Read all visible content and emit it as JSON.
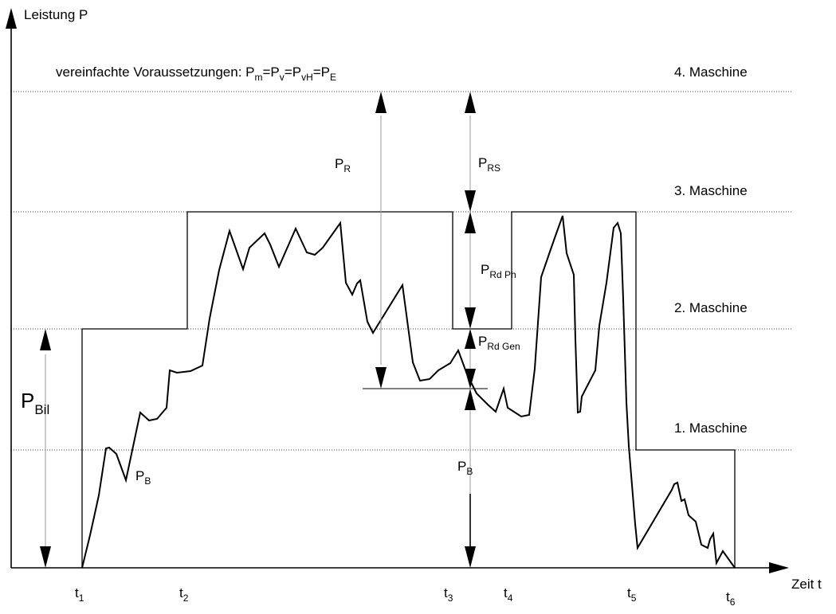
{
  "axes": {
    "y_label": "Leistung P",
    "x_label": "Zeit t"
  },
  "note": {
    "prefix": "vereinfachte Voraussetzungen: P",
    "sub1": "m",
    "eq1": "=P",
    "sub2": "v",
    "eq2": "=P",
    "sub3": "vH",
    "eq3": "=P",
    "sub4": "E"
  },
  "levels": [
    {
      "label": "1. Maschine"
    },
    {
      "label": "2. Maschine"
    },
    {
      "label": "3. Maschine"
    },
    {
      "label": "4. Maschine"
    }
  ],
  "time_marks": [
    {
      "base": "t",
      "sub": "1"
    },
    {
      "base": "t",
      "sub": "2"
    },
    {
      "base": "t",
      "sub": "3"
    },
    {
      "base": "t",
      "sub": "4"
    },
    {
      "base": "t",
      "sub": "5"
    },
    {
      "base": "t",
      "sub": "6"
    }
  ],
  "annotations": {
    "p_bil": {
      "base": "P",
      "sub": "Bil"
    },
    "p_b_left": {
      "base": "P",
      "sub": "B"
    },
    "p_b_right": {
      "base": "P",
      "sub": "B"
    },
    "p_r": {
      "base": "P",
      "sub": "R"
    },
    "p_rs": {
      "base": "P",
      "sub": "RS"
    },
    "p_rd_ph": {
      "base": "P",
      "sub": "Rd Ph"
    },
    "p_rd_gen": {
      "base": "P",
      "sub": "Rd Gen"
    }
  },
  "colors": {
    "ink": "#000000",
    "guide": "#999999"
  }
}
